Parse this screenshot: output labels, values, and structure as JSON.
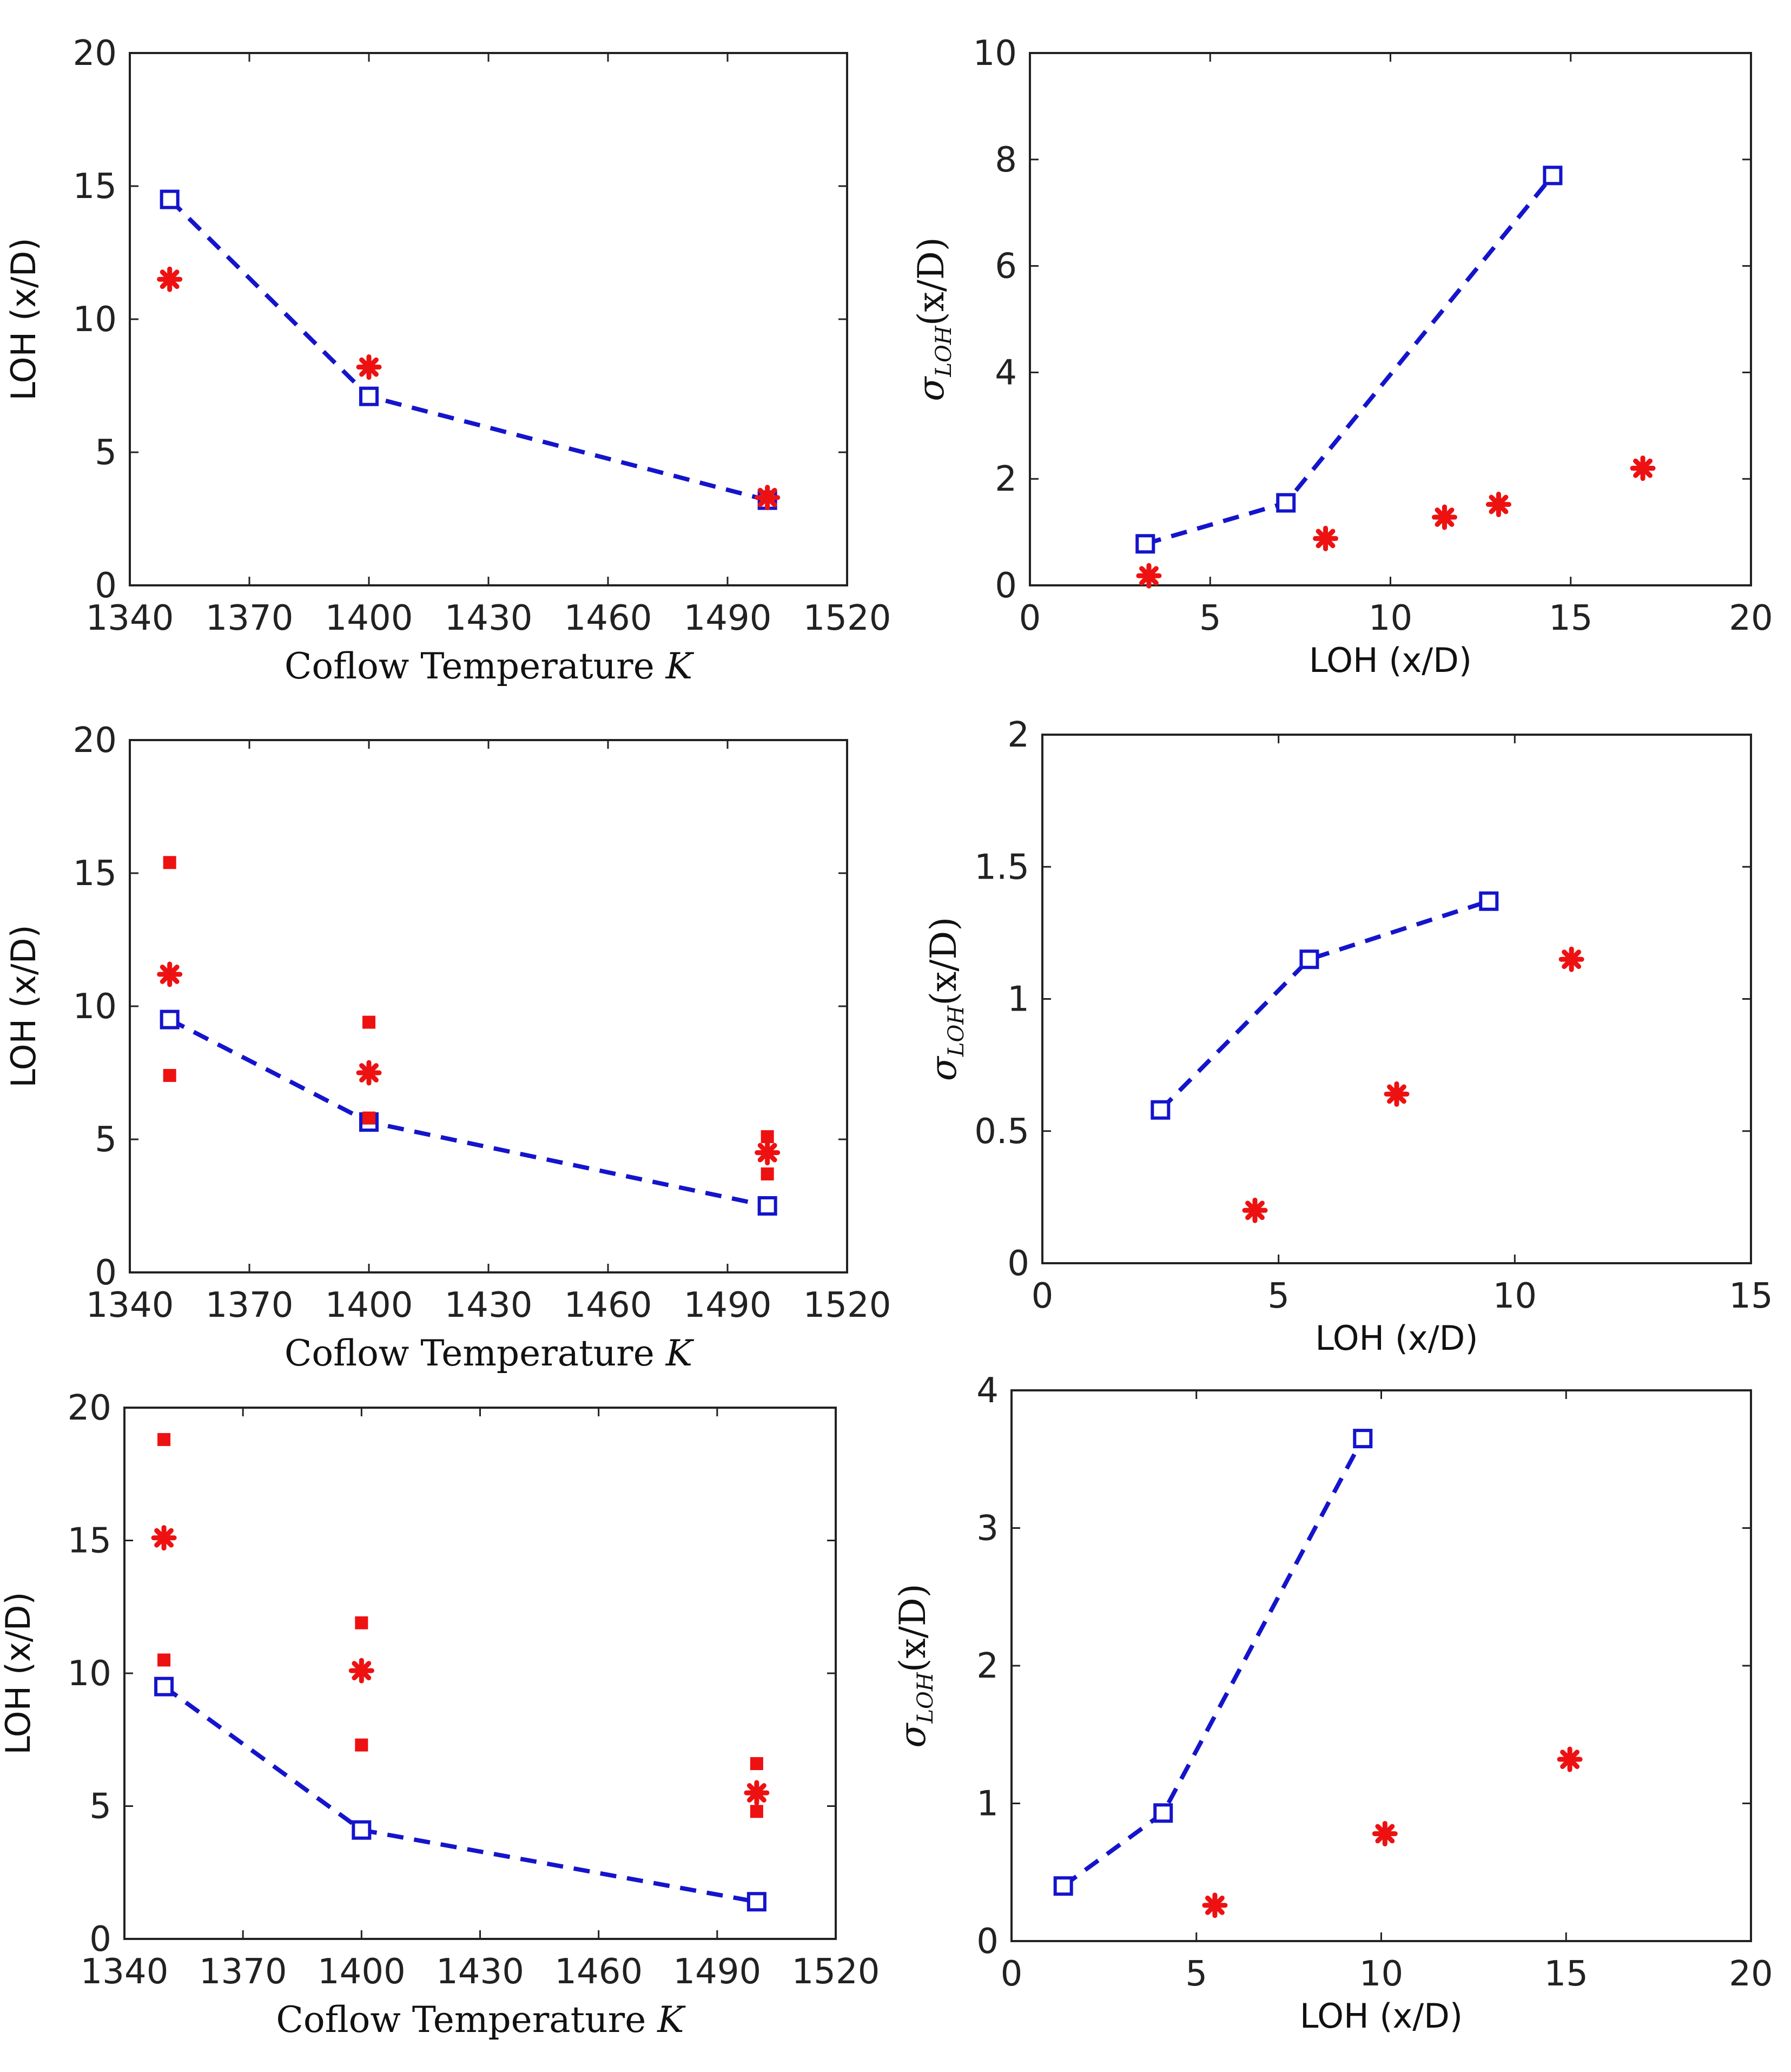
{
  "colors": {
    "blue": "#1414cc",
    "red": "#ee1111",
    "axis": "#222222"
  },
  "chart_data": [
    {
      "id": "p1",
      "type": "scatter",
      "xlabel_main": "Coflow Temperature ",
      "xlabel_var": "K",
      "ylabel": "LOH (x/D)",
      "xlim": [
        1340,
        1520
      ],
      "ylim": [
        0,
        20
      ],
      "xticks": [
        1340,
        1370,
        1400,
        1430,
        1460,
        1490,
        1520
      ],
      "yticks": [
        0,
        5,
        10,
        15,
        20
      ],
      "series": [
        {
          "name": "blue-squares-dashed",
          "marker": "square",
          "line": "dashed",
          "x": [
            1350,
            1400,
            1500
          ],
          "y": [
            14.5,
            7.1,
            3.2
          ]
        },
        {
          "name": "red-stars",
          "marker": "star",
          "x": [
            1350,
            1400,
            1500
          ],
          "y": [
            11.5,
            8.2,
            3.3
          ]
        }
      ]
    },
    {
      "id": "p2",
      "type": "scatter",
      "xlabel": "LOH (x/D)",
      "ylabel_sigma": "σ",
      "ylabel_sub": "LOH",
      "ylabel_rest": "(x/D)",
      "xlim": [
        0,
        20
      ],
      "ylim": [
        0,
        10
      ],
      "xticks": [
        0,
        5,
        10,
        15,
        20
      ],
      "yticks": [
        0,
        2,
        4,
        6,
        8,
        10
      ],
      "series": [
        {
          "name": "blue-squares-dashed",
          "marker": "square",
          "line": "dashed",
          "x": [
            3.2,
            7.1,
            14.5
          ],
          "y": [
            0.78,
            1.55,
            7.7
          ]
        },
        {
          "name": "red-stars",
          "marker": "star",
          "x": [
            3.3,
            8.2,
            11.5,
            13.0,
            17.0
          ],
          "y": [
            0.18,
            0.88,
            1.28,
            1.52,
            2.2
          ]
        }
      ]
    },
    {
      "id": "p3",
      "type": "scatter",
      "xlabel_main": "Coflow Temperature ",
      "xlabel_var": "K",
      "ylabel": "LOH (x/D)",
      "xlim": [
        1340,
        1520
      ],
      "ylim": [
        0,
        20
      ],
      "xticks": [
        1340,
        1370,
        1400,
        1430,
        1460,
        1490,
        1520
      ],
      "yticks": [
        0,
        5,
        10,
        15,
        20
      ],
      "series": [
        {
          "name": "blue-squares-dashed",
          "marker": "square",
          "line": "dashed",
          "x": [
            1350,
            1400,
            1500
          ],
          "y": [
            9.5,
            5.65,
            2.5
          ]
        },
        {
          "name": "red-stars",
          "marker": "star",
          "x": [
            1350,
            1400,
            1500
          ],
          "y": [
            11.2,
            7.5,
            4.5
          ]
        },
        {
          "name": "red-filled-squares",
          "marker": "filled-square",
          "x": [
            1350,
            1350,
            1400,
            1400,
            1500,
            1500
          ],
          "y": [
            15.4,
            7.4,
            9.4,
            5.8,
            5.1,
            3.7
          ]
        }
      ]
    },
    {
      "id": "p4",
      "type": "scatter",
      "xlabel": "LOH (x/D)",
      "ylabel_sigma": "σ",
      "ylabel_sub": "LOH",
      "ylabel_rest": "(x/D)",
      "xlim": [
        0,
        15
      ],
      "ylim": [
        0,
        2
      ],
      "xticks": [
        0,
        5,
        10,
        15
      ],
      "yticks": [
        0,
        0.5,
        1,
        1.5,
        2
      ],
      "series": [
        {
          "name": "blue-squares-dashed",
          "marker": "square",
          "line": "dashed",
          "x": [
            2.5,
            5.65,
            9.45
          ],
          "y": [
            0.58,
            1.15,
            1.37
          ]
        },
        {
          "name": "red-stars",
          "marker": "star",
          "x": [
            4.5,
            7.5,
            11.2
          ],
          "y": [
            0.2,
            0.64,
            1.15
          ]
        }
      ]
    },
    {
      "id": "p5",
      "type": "scatter",
      "xlabel_main": "Coflow Temperature ",
      "xlabel_var": "K",
      "ylabel": "LOH (x/D)",
      "xlim": [
        1340,
        1520
      ],
      "ylim": [
        0,
        20
      ],
      "xticks": [
        1340,
        1370,
        1400,
        1430,
        1460,
        1490,
        1520
      ],
      "yticks": [
        0,
        5,
        10,
        15,
        20
      ],
      "series": [
        {
          "name": "blue-squares-dashed",
          "marker": "square",
          "line": "dashed",
          "x": [
            1350,
            1400,
            1500
          ],
          "y": [
            9.5,
            4.1,
            1.4
          ]
        },
        {
          "name": "red-stars",
          "marker": "star",
          "x": [
            1350,
            1400,
            1500
          ],
          "y": [
            15.1,
            10.1,
            5.5
          ]
        },
        {
          "name": "red-filled-squares",
          "marker": "filled-square",
          "x": [
            1350,
            1350,
            1400,
            1400,
            1500,
            1500
          ],
          "y": [
            18.8,
            10.5,
            11.9,
            7.3,
            6.6,
            4.8
          ]
        }
      ]
    },
    {
      "id": "p6",
      "type": "scatter",
      "xlabel": "LOH (x/D)",
      "ylabel_sigma": "σ",
      "ylabel_sub": "LOH",
      "ylabel_rest": "(x/D)",
      "xlim": [
        0,
        20
      ],
      "ylim": [
        0,
        4
      ],
      "xticks": [
        0,
        5,
        10,
        15,
        20
      ],
      "yticks": [
        0,
        1,
        2,
        3,
        4
      ],
      "series": [
        {
          "name": "blue-squares-dashed",
          "marker": "square",
          "line": "dashed",
          "x": [
            1.4,
            4.1,
            9.5
          ],
          "y": [
            0.4,
            0.93,
            3.65
          ]
        },
        {
          "name": "red-stars",
          "marker": "star",
          "x": [
            5.5,
            10.1,
            15.1
          ],
          "y": [
            0.26,
            0.78,
            1.32
          ]
        }
      ]
    }
  ]
}
